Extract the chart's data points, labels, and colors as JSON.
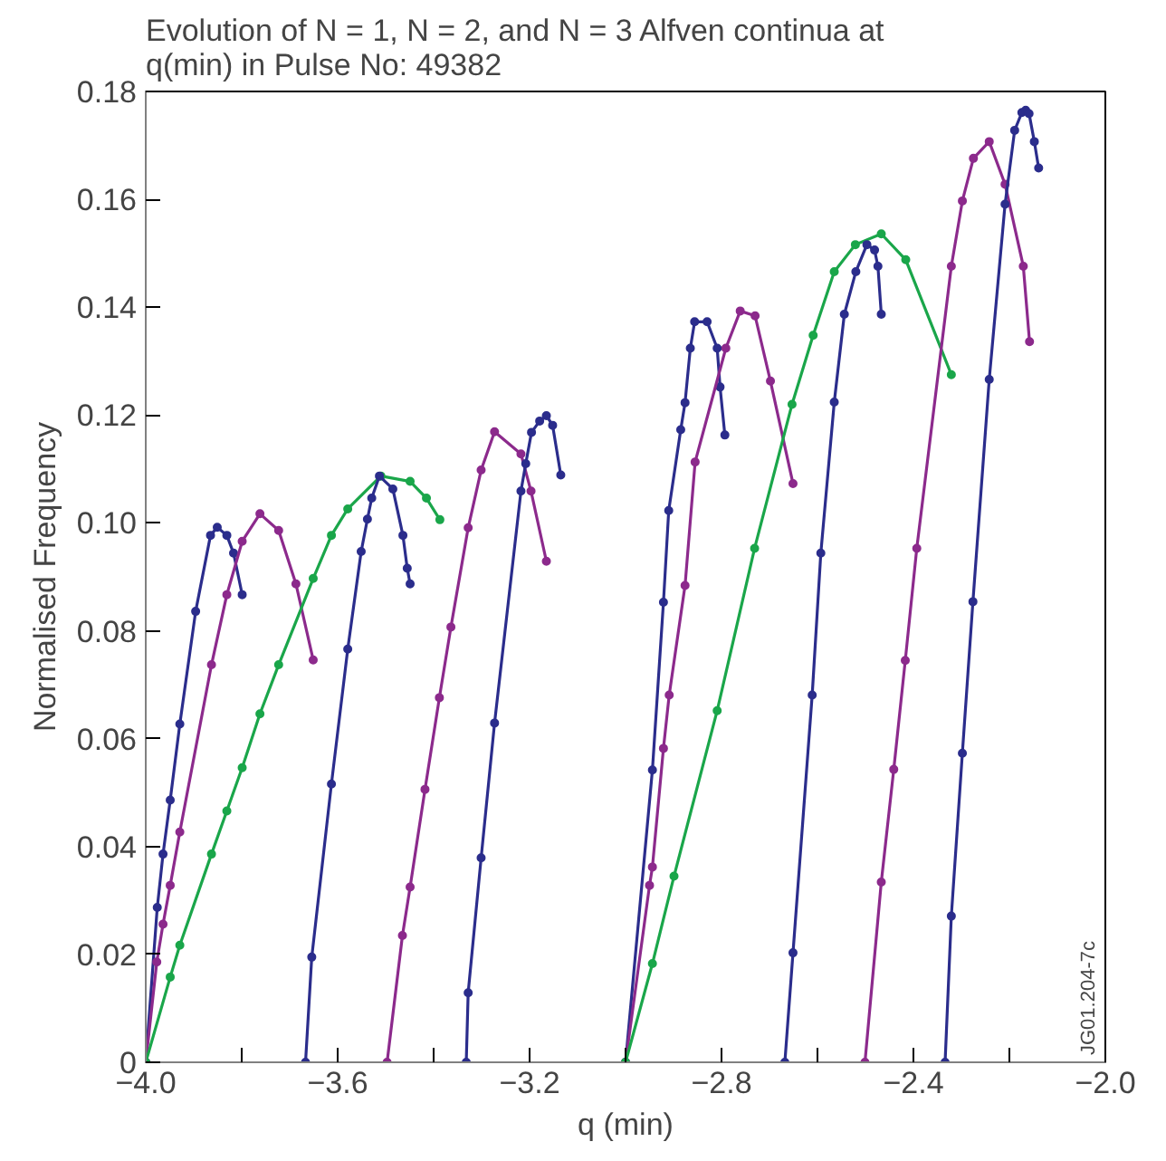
{
  "chart_data": {
    "type": "line",
    "title": "Evolution of N = 1, N = 2, and N = 3  Alfven continua at q(min) in Pulse No: 49382",
    "xlabel": "q (min)",
    "ylabel": "Normalised Frequency",
    "marker": "circle",
    "line_style": "solid",
    "grid": false,
    "annotations": [
      "JG01.204-7c"
    ],
    "xlim": [
      -4.0,
      -2.0
    ],
    "ylim": [
      0,
      0.18
    ],
    "xticks": [
      {
        "value": -4.0,
        "label": "−4.0"
      },
      {
        "value": -3.8,
        "label": null
      },
      {
        "value": -3.6,
        "label": "−3.6"
      },
      {
        "value": -3.4,
        "label": null
      },
      {
        "value": -3.2,
        "label": "−3.2"
      },
      {
        "value": -3.0,
        "label": null
      },
      {
        "value": -2.8,
        "label": "−2.8"
      },
      {
        "value": -2.6,
        "label": null
      },
      {
        "value": -2.4,
        "label": "−2.4"
      },
      {
        "value": -2.2,
        "label": null
      },
      {
        "value": -2.0,
        "label": "−2.0"
      }
    ],
    "yticks": [
      0,
      0.02,
      0.04,
      0.06,
      0.08,
      {
        "value": 0.1,
        "label": "0.10"
      },
      0.12,
      0.14,
      0.16,
      0.18
    ],
    "series": [
      {
        "color": "#2b2d8c",
        "x": [
          -4.0,
          -3.976,
          -3.964,
          -3.949,
          -3.929,
          -3.896,
          -3.865,
          -3.851,
          -3.831,
          -3.817,
          -3.799
        ],
        "values": [
          0,
          0.0287,
          0.0386,
          0.0486,
          0.0627,
          0.0836,
          0.0977,
          0.0992,
          0.0977,
          0.0944,
          0.0867
        ]
      },
      {
        "color": "#8c2a8c",
        "x": [
          -4.0,
          -3.977,
          -3.964,
          -3.949,
          -3.929,
          -3.863,
          -3.831,
          -3.799,
          -3.762,
          -3.723,
          -3.687,
          -3.651
        ],
        "values": [
          0,
          0.0186,
          0.0256,
          0.0328,
          0.0427,
          0.0737,
          0.0867,
          0.0966,
          0.1017,
          0.0986,
          0.0887,
          0.0746
        ]
      },
      {
        "color": "#1aa64a",
        "x": [
          -4.0,
          -3.949,
          -3.929,
          -3.863,
          -3.831,
          -3.799,
          -3.762,
          -3.723,
          -3.651,
          -3.613,
          -3.579,
          -3.51,
          -3.449,
          -3.415,
          -3.387
        ],
        "values": [
          0,
          0.0158,
          0.0217,
          0.0386,
          0.0466,
          0.0546,
          0.0646,
          0.0737,
          0.0897,
          0.0977,
          0.1026,
          0.1087,
          0.1077,
          0.1046,
          0.1006
        ]
      },
      {
        "color": "#2b2d8c",
        "x": [
          -3.667,
          -3.654,
          -3.613,
          -3.579,
          -3.551,
          -3.538,
          -3.529,
          -3.513,
          -3.485,
          -3.464,
          -3.455,
          -3.449
        ],
        "values": [
          0,
          0.0195,
          0.0516,
          0.0766,
          0.0947,
          0.1007,
          0.1046,
          0.1087,
          0.1063,
          0.0977,
          0.0916,
          0.0887
        ]
      },
      {
        "color": "#8c2a8c",
        "x": [
          -3.497,
          -3.465,
          -3.449,
          -3.418,
          -3.388,
          -3.364,
          -3.328,
          -3.301,
          -3.273,
          -3.218,
          -3.197,
          -3.165
        ],
        "values": [
          0,
          0.0235,
          0.0325,
          0.0506,
          0.0676,
          0.0807,
          0.0991,
          0.1098,
          0.1169,
          0.1128,
          0.1059,
          0.0929
        ]
      },
      {
        "color": "#2b2d8c",
        "x": [
          -3.332,
          -3.328,
          -3.301,
          -3.273,
          -3.218,
          -3.208,
          -3.196,
          -3.179,
          -3.165,
          -3.152,
          -3.135
        ],
        "values": [
          0,
          0.0129,
          0.0379,
          0.0629,
          0.1059,
          0.111,
          0.1168,
          0.1189,
          0.1199,
          0.1181,
          0.1089
        ]
      },
      {
        "color": "#2b2d8c",
        "x": [
          -3.0,
          -2.944,
          -2.921,
          -2.91,
          -2.885,
          -2.876,
          -2.865,
          -2.856,
          -2.83,
          -2.809,
          -2.803,
          -2.793
        ],
        "values": [
          0,
          0.0542,
          0.0853,
          0.1023,
          0.1173,
          0.1223,
          0.1324,
          0.1373,
          0.1373,
          0.1324,
          0.1252,
          0.1163
        ]
      },
      {
        "color": "#8c2a8c",
        "x": [
          -3.0,
          -2.95,
          -2.944,
          -2.921,
          -2.909,
          -2.876,
          -2.855,
          -2.791,
          -2.761,
          -2.73,
          -2.698,
          -2.651
        ],
        "values": [
          0,
          0.0328,
          0.0362,
          0.0582,
          0.0681,
          0.0884,
          0.1113,
          0.1324,
          0.1393,
          0.1384,
          0.1263,
          0.1073
        ]
      },
      {
        "color": "#1aa64a",
        "x": [
          -3.0,
          -2.944,
          -2.899,
          -2.809,
          -2.731,
          -2.653,
          -2.609,
          -2.565,
          -2.521,
          -2.467,
          -2.416,
          -2.321
        ],
        "values": [
          0,
          0.0183,
          0.0345,
          0.0652,
          0.0953,
          0.122,
          0.1348,
          0.1466,
          0.1516,
          0.1536,
          0.1488,
          0.1275
        ]
      },
      {
        "color": "#2b2d8c",
        "x": [
          -2.668,
          -2.651,
          -2.611,
          -2.593,
          -2.565,
          -2.544,
          -2.52,
          -2.497,
          -2.481,
          -2.474,
          -2.467
        ],
        "values": [
          0,
          0.0203,
          0.0681,
          0.0944,
          0.1224,
          0.1387,
          0.1466,
          0.1516,
          0.1506,
          0.1476,
          0.1387
        ]
      },
      {
        "color": "#8c2a8c",
        "x": [
          -2.501,
          -2.467,
          -2.441,
          -2.417,
          -2.393,
          -2.321,
          -2.298,
          -2.275,
          -2.242,
          -2.209,
          -2.171,
          -2.158
        ],
        "values": [
          0,
          0.0334,
          0.0543,
          0.0745,
          0.0953,
          0.1476,
          0.1597,
          0.1676,
          0.1707,
          0.1628,
          0.1476,
          0.1336
        ]
      },
      {
        "color": "#2b2d8c",
        "x": [
          -2.334,
          -2.321,
          -2.298,
          -2.276,
          -2.242,
          -2.209,
          -2.189,
          -2.174,
          -2.166,
          -2.159,
          -2.148,
          -2.139
        ],
        "values": [
          0,
          0.0271,
          0.0573,
          0.0854,
          0.1266,
          0.1591,
          0.1728,
          0.1761,
          0.1765,
          0.1759,
          0.1707,
          0.1658
        ]
      }
    ]
  }
}
